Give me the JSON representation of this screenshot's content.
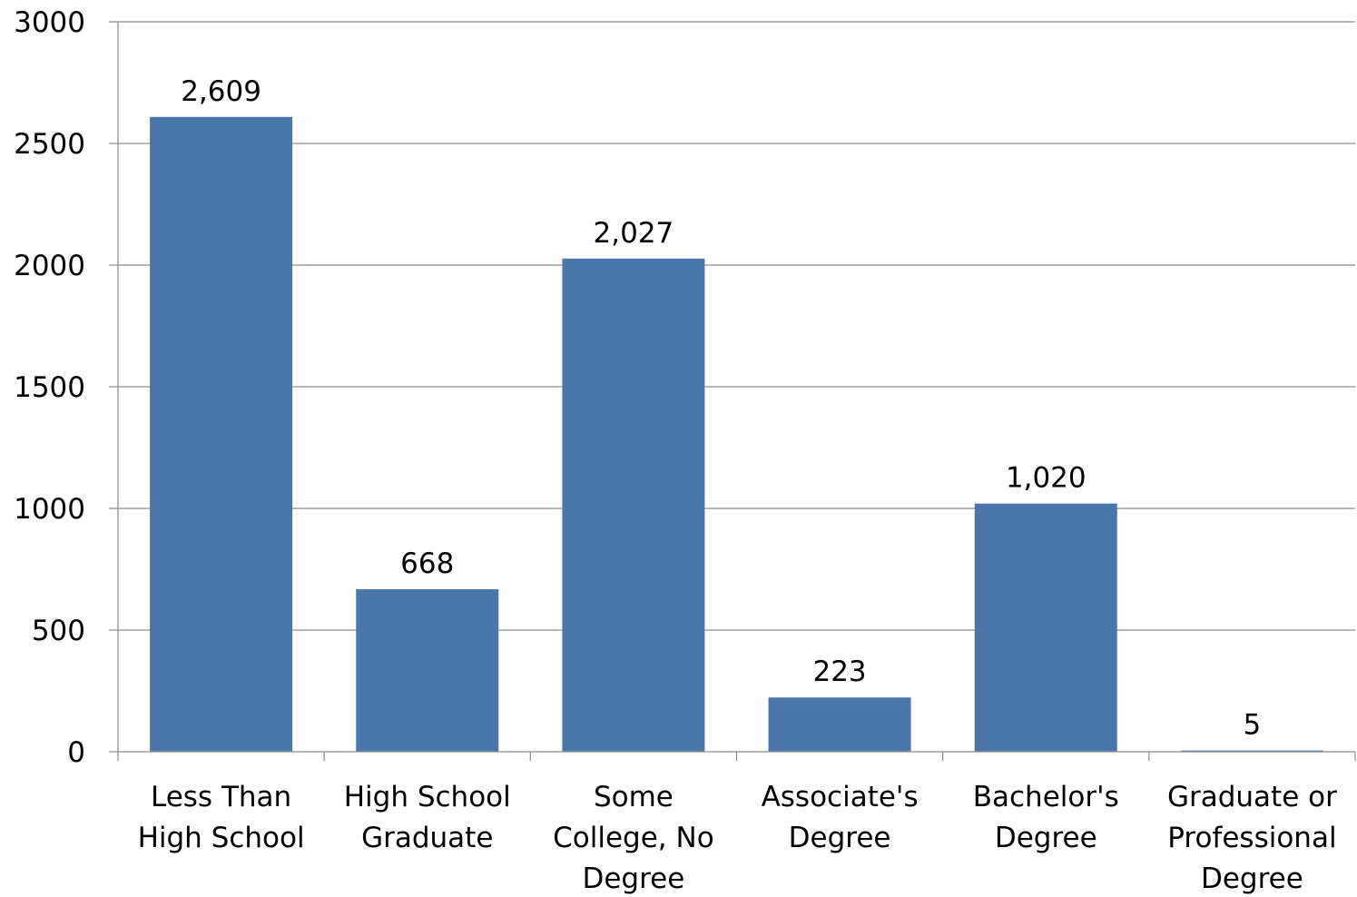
{
  "chart_data": {
    "type": "bar",
    "title": "",
    "xlabel": "",
    "ylabel": "",
    "categories": [
      [
        "Less Than",
        "High School"
      ],
      [
        "High School",
        "Graduate"
      ],
      [
        "Some",
        "College, No",
        "Degree"
      ],
      [
        "Associate's",
        "Degree"
      ],
      [
        "Bachelor's",
        "Degree"
      ],
      [
        "Graduate or",
        "Professional",
        "Degree"
      ]
    ],
    "values": [
      2609,
      668,
      2027,
      223,
      1020,
      5
    ],
    "data_labels": [
      "2,609",
      "668",
      "2,027",
      "223",
      "1,020",
      "5"
    ],
    "ylim": [
      0,
      3000
    ],
    "yticks": [
      0,
      500,
      1000,
      1500,
      2000,
      2500,
      3000
    ],
    "grid": true,
    "legend": "none",
    "bar_color": "#4a76aa"
  }
}
